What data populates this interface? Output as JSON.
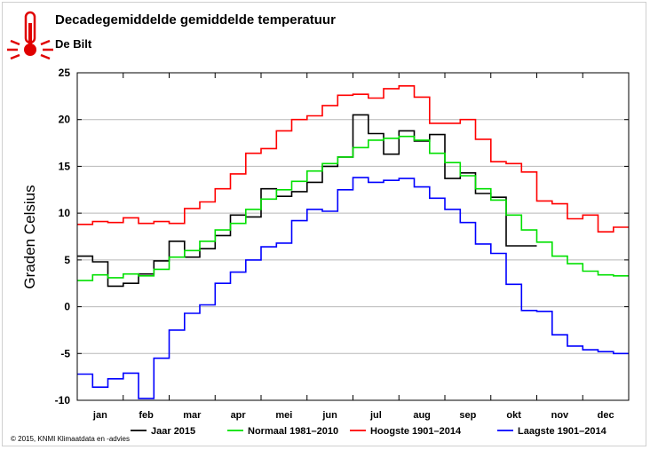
{
  "title": "Decadegemiddelde gemiddelde temperatuur",
  "subtitle": "De Bilt",
  "copyright": "© 2015, KNMI Klimaatdata en -advies",
  "icon": "thermometer-icon",
  "chart_data": {
    "type": "line",
    "step": true,
    "xlabel": "",
    "ylabel": "Graden Celsius",
    "ylim": [
      -10,
      25
    ],
    "yticks": [
      -10,
      -5,
      0,
      5,
      10,
      15,
      20,
      25
    ],
    "months": [
      "jan",
      "feb",
      "mar",
      "apr",
      "mei",
      "jun",
      "jul",
      "aug",
      "sep",
      "okt",
      "nov",
      "dec"
    ],
    "x_unit": "decade (10-daagse periode, 36 per jaar)",
    "grid": true,
    "legend_position": "bottom",
    "series": [
      {
        "name": "Jaar 2015",
        "color": "#000000",
        "values": [
          5.4,
          4.8,
          2.2,
          2.5,
          3.5,
          4.9,
          7.0,
          5.3,
          6.2,
          7.6,
          9.8,
          9.6,
          12.6,
          11.8,
          12.3,
          13.3,
          15.0,
          16.0,
          20.5,
          18.5,
          16.3,
          18.8,
          17.7,
          18.4,
          13.7,
          14.3,
          12.1,
          11.7,
          6.5,
          6.5
        ]
      },
      {
        "name": "Normaal 1981–2010",
        "color": "#00e000",
        "values": [
          2.8,
          3.4,
          3.1,
          3.5,
          3.3,
          4.0,
          5.3,
          6.0,
          7.0,
          8.2,
          8.9,
          10.4,
          11.5,
          12.5,
          13.4,
          14.5,
          15.3,
          16.0,
          17.0,
          17.8,
          18.0,
          18.2,
          17.8,
          16.4,
          15.4,
          14.0,
          12.6,
          11.4,
          9.8,
          8.2,
          6.9,
          5.4,
          4.6,
          3.8,
          3.4,
          3.3
        ]
      },
      {
        "name": "Hoogste 1901–2014",
        "color": "#ff0000",
        "values": [
          8.8,
          9.1,
          9.0,
          9.5,
          8.9,
          9.1,
          8.9,
          10.5,
          11.2,
          12.6,
          14.2,
          16.4,
          16.9,
          18.8,
          20.0,
          20.4,
          21.5,
          22.6,
          22.7,
          22.3,
          23.3,
          23.6,
          22.4,
          19.6,
          19.6,
          20.0,
          17.9,
          15.5,
          15.3,
          14.4,
          11.3,
          11.0,
          9.4,
          9.8,
          8.0,
          8.5
        ]
      },
      {
        "name": "Laagste 1901–2014",
        "color": "#0000ff",
        "values": [
          -7.2,
          -8.6,
          -7.7,
          -7.1,
          -9.8,
          -5.5,
          -2.5,
          -0.7,
          0.2,
          2.5,
          3.7,
          5.0,
          6.4,
          6.8,
          9.2,
          10.4,
          10.2,
          12.5,
          13.8,
          13.3,
          13.5,
          13.7,
          12.8,
          11.6,
          10.4,
          9.0,
          6.7,
          5.7,
          2.4,
          -0.4,
          -0.5,
          -3.0,
          -4.2,
          -4.6,
          -4.8,
          -5.0
        ]
      }
    ]
  }
}
